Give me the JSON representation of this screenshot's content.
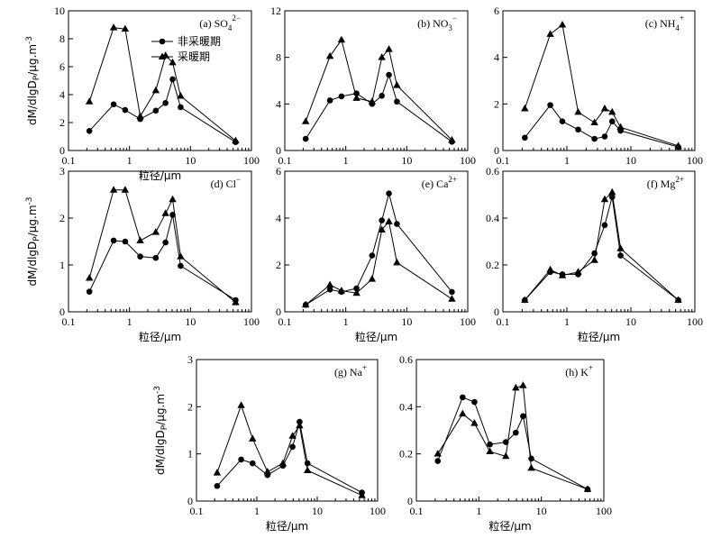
{
  "chart_data": [
    {
      "type": "line",
      "panel_label": "(a)",
      "ion": "SO",
      "ion_sub": "4",
      "ion_sup": "2−",
      "xscale": "log",
      "xlim": [
        0.1,
        100
      ],
      "ylim": [
        0,
        10
      ],
      "yticks": [
        "0",
        "2",
        "4",
        "6",
        "8",
        "10"
      ],
      "xticks": [
        "0.1",
        "1",
        "10",
        "100"
      ],
      "xlabel": "粒径/μm",
      "ylabel": "dM/dlgDp/μg.m-3",
      "series": [
        {
          "name": "非采暖期",
          "marker": "circle",
          "x": [
            0.22,
            0.55,
            0.85,
            1.5,
            2.7,
            3.9,
            5.1,
            6.9,
            55
          ],
          "y": [
            1.4,
            3.3,
            2.9,
            2.25,
            2.85,
            3.4,
            5.1,
            3.1,
            0.6
          ]
        },
        {
          "name": "采暖期",
          "marker": "triangle",
          "x": [
            0.22,
            0.55,
            0.85,
            1.5,
            2.7,
            3.9,
            5.1,
            6.9,
            55
          ],
          "y": [
            3.5,
            8.8,
            8.7,
            2.45,
            4.3,
            6.8,
            6.3,
            3.9,
            0.7
          ]
        }
      ]
    },
    {
      "type": "line",
      "panel_label": "(b)",
      "ion": "NO",
      "ion_sub": "3",
      "ion_sup": "−",
      "xscale": "log",
      "xlim": [
        0.1,
        100
      ],
      "ylim": [
        0,
        12
      ],
      "yticks": [
        "0",
        "4",
        "8",
        "12"
      ],
      "xticks": [
        "0.1",
        "1",
        "10",
        "100"
      ],
      "xlabel": "",
      "ylabel": "",
      "series": [
        {
          "name": "非采暖期",
          "marker": "circle",
          "x": [
            0.22,
            0.55,
            0.85,
            1.5,
            2.7,
            3.9,
            5.1,
            6.9,
            55
          ],
          "y": [
            1.0,
            4.3,
            4.65,
            4.9,
            4.0,
            4.7,
            6.5,
            4.2,
            0.75
          ]
        },
        {
          "name": "采暖期",
          "marker": "triangle",
          "x": [
            0.22,
            0.55,
            0.85,
            1.5,
            2.7,
            3.9,
            5.1,
            6.9,
            55
          ],
          "y": [
            2.5,
            8.1,
            9.5,
            4.5,
            4.2,
            8.0,
            8.7,
            5.6,
            0.9
          ]
        }
      ]
    },
    {
      "type": "line",
      "panel_label": "(c)",
      "ion": "NH",
      "ion_sub": "4",
      "ion_sup": "+",
      "xscale": "log",
      "xlim": [
        0.1,
        100
      ],
      "ylim": [
        0,
        6
      ],
      "yticks": [
        "0",
        "2",
        "4",
        "6"
      ],
      "xticks": [
        "0.1",
        "1",
        "10",
        "100"
      ],
      "xlabel": "",
      "ylabel": "",
      "series": [
        {
          "name": "非采暖期",
          "marker": "circle",
          "x": [
            0.22,
            0.55,
            0.85,
            1.5,
            2.7,
            3.9,
            5.1,
            6.9,
            55
          ],
          "y": [
            0.55,
            1.95,
            1.25,
            0.9,
            0.5,
            0.6,
            1.25,
            0.85,
            0.15
          ]
        },
        {
          "name": "采暖期",
          "marker": "triangle",
          "x": [
            0.22,
            0.55,
            0.85,
            1.5,
            2.7,
            3.9,
            5.1,
            6.9,
            55
          ],
          "y": [
            1.8,
            5.0,
            5.4,
            1.65,
            1.2,
            1.8,
            1.65,
            1.0,
            0.2
          ]
        }
      ]
    },
    {
      "type": "line",
      "panel_label": "(d)",
      "ion": "Cl",
      "ion_sub": "",
      "ion_sup": "−",
      "xscale": "log",
      "xlim": [
        0.1,
        100
      ],
      "ylim": [
        0,
        3
      ],
      "yticks": [
        "0",
        "1",
        "2",
        "3"
      ],
      "xticks": [
        "0.1",
        "1",
        "10",
        "100"
      ],
      "xlabel": "粒径/μm",
      "ylabel": "dM/dlgDp/μg.m-3",
      "series": [
        {
          "name": "非采暖期",
          "marker": "circle",
          "x": [
            0.22,
            0.55,
            0.85,
            1.5,
            2.7,
            3.9,
            5.1,
            6.9,
            55
          ],
          "y": [
            0.43,
            1.52,
            1.5,
            1.18,
            1.15,
            1.48,
            2.07,
            0.98,
            0.25
          ]
        },
        {
          "name": "采暖期",
          "marker": "triangle",
          "x": [
            0.22,
            0.55,
            0.85,
            1.5,
            2.7,
            3.9,
            5.1,
            6.9,
            55
          ],
          "y": [
            0.72,
            2.6,
            2.6,
            1.52,
            1.7,
            2.1,
            2.4,
            1.18,
            0.2
          ]
        }
      ]
    },
    {
      "type": "line",
      "panel_label": "(e)",
      "ion": "Ca",
      "ion_sub": "",
      "ion_sup": "2+",
      "xscale": "log",
      "xlim": [
        0.1,
        100
      ],
      "ylim": [
        0,
        6
      ],
      "yticks": [
        "0",
        "2",
        "4",
        "6"
      ],
      "xticks": [
        "0.1",
        "1",
        "10",
        "100"
      ],
      "xlabel": "粒径/μm",
      "ylabel": "",
      "series": [
        {
          "name": "非采暖期",
          "marker": "circle",
          "x": [
            0.22,
            0.55,
            0.85,
            1.5,
            2.7,
            3.9,
            5.1,
            6.9,
            55
          ],
          "y": [
            0.3,
            0.95,
            0.85,
            1.0,
            2.4,
            3.9,
            5.05,
            3.75,
            0.85
          ]
        },
        {
          "name": "采暖期",
          "marker": "triangle",
          "x": [
            0.22,
            0.55,
            0.85,
            1.5,
            2.7,
            3.9,
            5.1,
            6.9,
            55
          ],
          "y": [
            0.3,
            1.15,
            0.9,
            0.8,
            1.4,
            3.5,
            3.85,
            2.1,
            0.55
          ]
        }
      ]
    },
    {
      "type": "line",
      "panel_label": "(f)",
      "ion": "Mg",
      "ion_sub": "",
      "ion_sup": "2+",
      "xscale": "log",
      "xlim": [
        0.1,
        100
      ],
      "ylim": [
        0,
        0.6
      ],
      "yticks": [
        "0",
        "0.2",
        "0.4",
        "0.6"
      ],
      "xticks": [
        "0.1",
        "1",
        "10",
        "100"
      ],
      "xlabel": "粒径/μm",
      "ylabel": "",
      "series": [
        {
          "name": "非采暖期",
          "marker": "circle",
          "x": [
            0.22,
            0.55,
            0.85,
            1.5,
            2.7,
            3.9,
            5.1,
            6.9,
            55
          ],
          "y": [
            0.05,
            0.17,
            0.16,
            0.16,
            0.25,
            0.37,
            0.49,
            0.24,
            0.05
          ]
        },
        {
          "name": "采暖期",
          "marker": "triangle",
          "x": [
            0.22,
            0.55,
            0.85,
            1.5,
            2.7,
            3.9,
            5.1,
            6.9,
            55
          ],
          "y": [
            0.05,
            0.18,
            0.155,
            0.17,
            0.22,
            0.48,
            0.51,
            0.27,
            0.05
          ]
        }
      ]
    },
    {
      "type": "line",
      "panel_label": "(g)",
      "ion": "Na",
      "ion_sub": "",
      "ion_sup": "+",
      "xscale": "log",
      "xlim": [
        0.1,
        100
      ],
      "ylim": [
        0,
        3
      ],
      "yticks": [
        "0",
        "1",
        "2",
        "3"
      ],
      "xticks": [
        "0.1",
        "1",
        "10",
        "100"
      ],
      "xlabel": "粒径/μm",
      "ylabel": "dM/dlgDp/μg.m-3",
      "series": [
        {
          "name": "非采暖期",
          "marker": "circle",
          "x": [
            0.22,
            0.55,
            0.85,
            1.5,
            2.7,
            3.9,
            5.1,
            6.9,
            55
          ],
          "y": [
            0.32,
            0.88,
            0.8,
            0.55,
            0.75,
            1.15,
            1.68,
            0.8,
            0.18
          ]
        },
        {
          "name": "采暖期",
          "marker": "triangle",
          "x": [
            0.22,
            0.55,
            0.85,
            1.5,
            2.7,
            3.9,
            5.1,
            6.9,
            55
          ],
          "y": [
            0.6,
            2.03,
            1.32,
            0.62,
            0.8,
            1.38,
            1.6,
            0.65,
            0.12
          ]
        }
      ]
    },
    {
      "type": "line",
      "panel_label": "(h)",
      "ion": "K",
      "ion_sub": "",
      "ion_sup": "+",
      "xscale": "log",
      "xlim": [
        0.1,
        100
      ],
      "ylim": [
        0,
        0.6
      ],
      "yticks": [
        "0",
        "0.2",
        "0.4",
        "0.6"
      ],
      "xticks": [
        "0.1",
        "1",
        "10",
        "100"
      ],
      "xlabel": "粒径/μm",
      "ylabel": "",
      "series": [
        {
          "name": "非采暖期",
          "marker": "circle",
          "x": [
            0.22,
            0.55,
            0.85,
            1.5,
            2.7,
            3.9,
            5.1,
            6.9,
            55
          ],
          "y": [
            0.17,
            0.44,
            0.42,
            0.24,
            0.25,
            0.29,
            0.36,
            0.18,
            0.05
          ]
        },
        {
          "name": "采暖期",
          "marker": "triangle",
          "x": [
            0.22,
            0.55,
            0.85,
            1.5,
            2.7,
            3.9,
            5.1,
            6.9,
            55
          ],
          "y": [
            0.2,
            0.37,
            0.33,
            0.21,
            0.19,
            0.48,
            0.49,
            0.14,
            0.05
          ]
        }
      ]
    }
  ],
  "legend": {
    "placement": "panel-a-top-center",
    "items": [
      {
        "label": "非采暖期",
        "marker": "circle"
      },
      {
        "label": "采暖期",
        "marker": "triangle"
      }
    ]
  }
}
